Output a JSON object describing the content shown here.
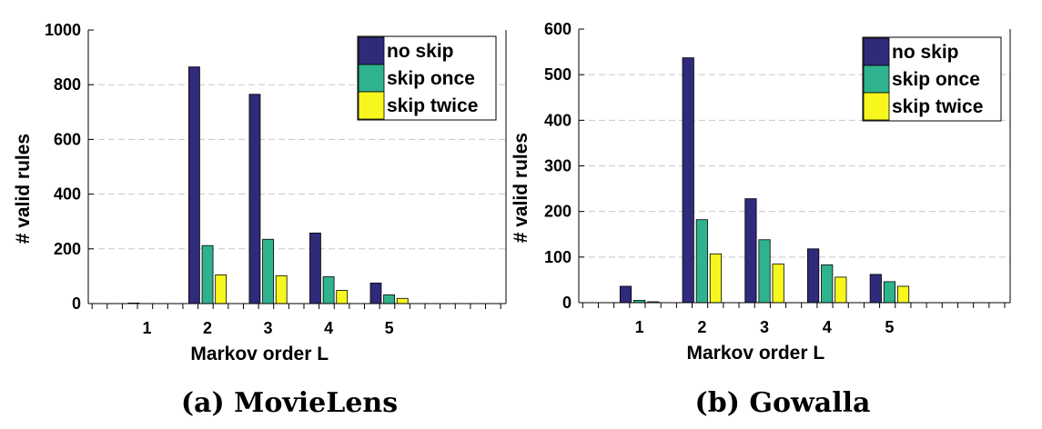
{
  "chart_data": [
    {
      "type": "bar",
      "caption": "(a) MovieLens",
      "xlabel": "Markov order L",
      "ylabel": "# valid rules",
      "categories": [
        "1",
        "2",
        "3",
        "4",
        "5"
      ],
      "ylim": [
        0,
        1000
      ],
      "yticks": [
        0,
        200,
        400,
        600,
        800,
        1000
      ],
      "grid": "horizontal dashed",
      "legend_position": "top-right",
      "series": [
        {
          "name": "no skip",
          "color": "#2f2a7a",
          "values": [
            2,
            865,
            765,
            258,
            75
          ]
        },
        {
          "name": "skip once",
          "color": "#2fb38f",
          "values": [
            0,
            212,
            235,
            98,
            32
          ]
        },
        {
          "name": "skip twice",
          "color": "#f7f71e",
          "values": [
            0,
            105,
            102,
            48,
            19
          ]
        }
      ]
    },
    {
      "type": "bar",
      "caption": "(b) Gowalla",
      "xlabel": "Markov order L",
      "ylabel": "# valid rules",
      "categories": [
        "1",
        "2",
        "3",
        "4",
        "5"
      ],
      "ylim": [
        0,
        600
      ],
      "yticks": [
        0,
        100,
        200,
        300,
        400,
        500,
        600
      ],
      "grid": "horizontal dashed",
      "legend_position": "top-right",
      "series": [
        {
          "name": "no skip",
          "color": "#2f2a7a",
          "values": [
            36,
            537,
            228,
            118,
            62
          ]
        },
        {
          "name": "skip once",
          "color": "#2fb38f",
          "values": [
            5,
            182,
            138,
            83,
            46
          ]
        },
        {
          "name": "skip twice",
          "color": "#f7f71e",
          "values": [
            2,
            107,
            85,
            56,
            36
          ]
        }
      ]
    }
  ]
}
